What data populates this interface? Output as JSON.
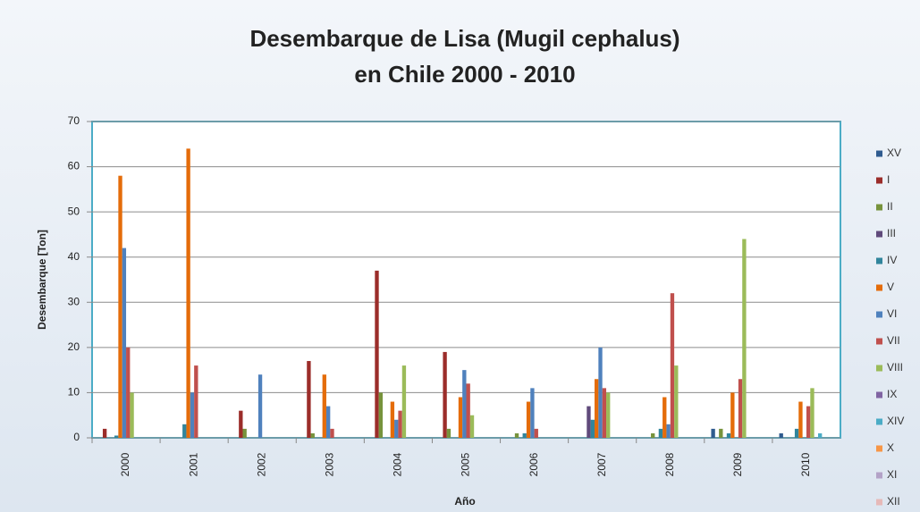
{
  "chart_data": {
    "type": "bar",
    "title": "Desembarque de Lisa (Mugil cephalus)",
    "subtitle": "en Chile 2000 - 2010",
    "x_label": "Año",
    "y_label": "Desembarque [Ton]",
    "categories": [
      "2000",
      "2001",
      "2002",
      "2003",
      "2004",
      "2005",
      "2006",
      "2007",
      "2008",
      "2009",
      "2010"
    ],
    "series": [
      {
        "name": "XV",
        "color": "#2f5b8f",
        "values": [
          0,
          0,
          0,
          0,
          0,
          0,
          0,
          0,
          0,
          2,
          1
        ]
      },
      {
        "name": "I",
        "color": "#9b2d2a",
        "values": [
          2,
          0,
          6,
          17,
          37,
          19,
          0,
          0,
          0,
          0,
          0
        ]
      },
      {
        "name": "II",
        "color": "#77933c",
        "values": [
          0,
          0,
          2,
          1,
          10,
          2,
          1,
          0,
          1,
          2,
          0
        ]
      },
      {
        "name": "III",
        "color": "#604a7b",
        "values": [
          0,
          0,
          0,
          0,
          0,
          0,
          0,
          7,
          0,
          0,
          0
        ]
      },
      {
        "name": "IV",
        "color": "#31859c",
        "values": [
          0.5,
          3,
          0,
          0,
          0,
          0,
          1,
          4,
          2,
          1,
          2
        ]
      },
      {
        "name": "V",
        "color": "#e46c0a",
        "values": [
          58,
          64,
          0,
          14,
          8,
          9,
          8,
          13,
          9,
          10,
          8
        ]
      },
      {
        "name": "VI",
        "color": "#4f81bd",
        "values": [
          42,
          10,
          14,
          7,
          4,
          15,
          11,
          20,
          3,
          0,
          0
        ]
      },
      {
        "name": "VII",
        "color": "#c0504d",
        "values": [
          20,
          16,
          0,
          2,
          6,
          12,
          2,
          11,
          32,
          13,
          7
        ]
      },
      {
        "name": "VIII",
        "color": "#9bbb59",
        "values": [
          10,
          0,
          0,
          0,
          16,
          5,
          0,
          10,
          16,
          44,
          11
        ]
      },
      {
        "name": "IX",
        "color": "#8064a2",
        "values": [
          0,
          0,
          0,
          0,
          0,
          0,
          0,
          0,
          0,
          0,
          0
        ]
      },
      {
        "name": "XIV",
        "color": "#4bacc6",
        "values": [
          0,
          0,
          0,
          0,
          0,
          0,
          0,
          0,
          0,
          0,
          1
        ]
      },
      {
        "name": "X",
        "color": "#f79646",
        "values": [
          0,
          0,
          0,
          0,
          0,
          0,
          0,
          0,
          0,
          0,
          0
        ]
      },
      {
        "name": "XI",
        "color": "#b3a2c7",
        "values": [
          0,
          0,
          0,
          0,
          0,
          0,
          0,
          0,
          0,
          0,
          0
        ]
      },
      {
        "name": "XII",
        "color": "#e6b9b8",
        "values": [
          0,
          0,
          0,
          0,
          0,
          0,
          0,
          0,
          0,
          0,
          0
        ]
      }
    ],
    "ylim": [
      0,
      70
    ],
    "yticks": [
      0,
      10,
      20,
      30,
      40,
      50,
      60,
      70
    ],
    "grid": true,
    "legend": "right"
  }
}
